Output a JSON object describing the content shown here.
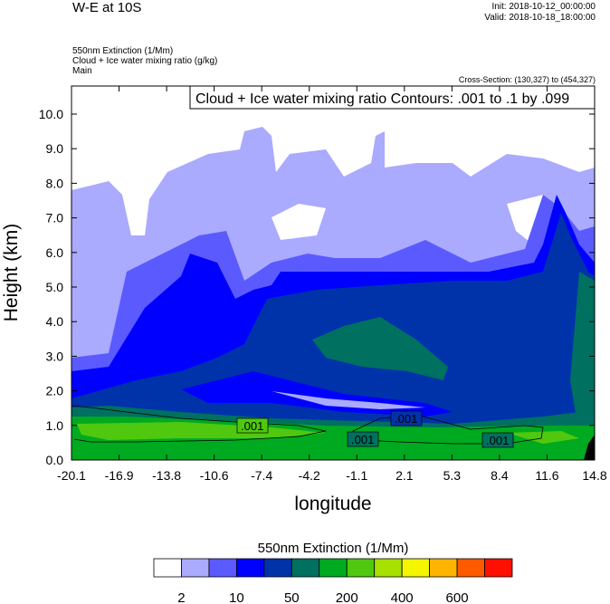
{
  "header": {
    "title": "W-E at 10S",
    "init": "Init: 2018-10-12_00:00:00",
    "valid": "Valid: 2018-10-18_18:00:00",
    "fields": [
      "550nm Extinction   (1/Mm)",
      "Cloud + Ice water mixing ratio   (g/kg)",
      "Main"
    ],
    "cross_section": "Cross-Section: (130,327) to (454,327)"
  },
  "chart_data": {
    "type": "heatmap",
    "title": "W-E at 10S",
    "contour_label": "Cloud + Ice water mixing ratio Contours: .001 to .1 by .099",
    "contour_values": [
      ".001",
      ".001",
      ".001",
      ".001"
    ],
    "xlabel": "longitude",
    "ylabel": "Height (km)",
    "xticks": [
      "-20.1",
      "-16.9",
      "-13.8",
      "-10.6",
      "-7.4",
      "-4.2",
      "-1.1",
      "2.1",
      "5.3",
      "8.4",
      "11.6",
      "14.8"
    ],
    "yticks": [
      "0.0",
      "1.0",
      "2.0",
      "3.0",
      "4.0",
      "5.0",
      "6.0",
      "7.0",
      "8.0",
      "9.0",
      "10.0"
    ],
    "xlim": [
      -20.1,
      14.8
    ],
    "ylim": [
      0,
      10.8
    ],
    "colorbar": {
      "title": "550nm Extinction  (1/Mm)",
      "colors": [
        "#ffffff",
        "#aaaaff",
        "#5a5aff",
        "#0000ff",
        "#0033aa",
        "#007060",
        "#00aa20",
        "#50c810",
        "#a8e000",
        "#f5f500",
        "#ffb400",
        "#ff5a00",
        "#ff1000"
      ],
      "labels": [
        "2",
        "10",
        "50",
        "200",
        "400",
        "600"
      ]
    }
  }
}
